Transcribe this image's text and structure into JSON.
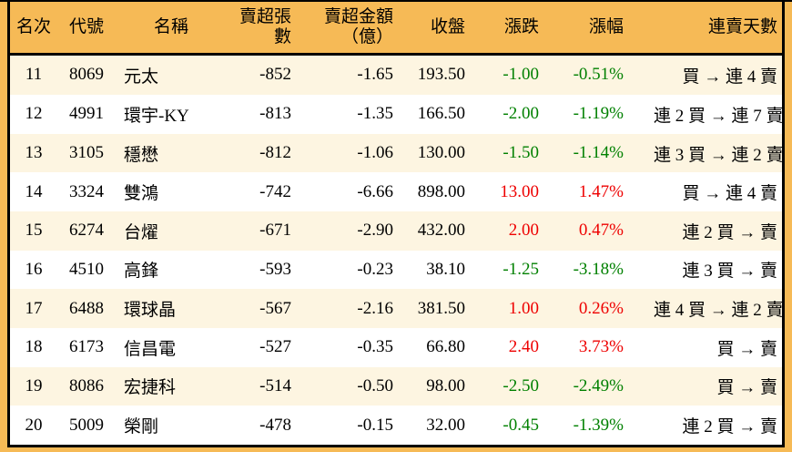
{
  "colors": {
    "page_bg": "#F6BA56",
    "header_bg": "#F6BA56",
    "row_stripe_bg": "#FDF5E1",
    "row_bg": "#FFFFFF",
    "positive_red": "#EE0000",
    "negative_green": "#008000",
    "border": "#000000"
  },
  "chart_data": {
    "type": "table",
    "columns": [
      {
        "key": "rank",
        "label": "名次"
      },
      {
        "key": "code",
        "label": "代號"
      },
      {
        "key": "name",
        "label": "名稱"
      },
      {
        "key": "sell_volume",
        "label": "賣超張數"
      },
      {
        "key": "sell_amount",
        "label": "賣超金額",
        "label_line2": "（億）"
      },
      {
        "key": "close",
        "label": "收盤"
      },
      {
        "key": "change",
        "label": "漲跌"
      },
      {
        "key": "change_pct",
        "label": "漲幅"
      },
      {
        "key": "streak",
        "label": "連賣天數"
      }
    ],
    "rows": [
      {
        "rank": "11",
        "code": "8069",
        "name": "元太",
        "sell_volume": "-852",
        "sell_amount": "-1.65",
        "close": "193.50",
        "change": "-1.00",
        "change_pct": "-0.51%",
        "streak": "買 → 連 4 賣",
        "trend": "down"
      },
      {
        "rank": "12",
        "code": "4991",
        "name": "環宇-KY",
        "sell_volume": "-813",
        "sell_amount": "-1.35",
        "close": "166.50",
        "change": "-2.00",
        "change_pct": "-1.19%",
        "streak": "連 2 買 → 連 7 賣",
        "trend": "down"
      },
      {
        "rank": "13",
        "code": "3105",
        "name": "穩懋",
        "sell_volume": "-812",
        "sell_amount": "-1.06",
        "close": "130.00",
        "change": "-1.50",
        "change_pct": "-1.14%",
        "streak": "連 3 買 → 連 2 賣",
        "trend": "down"
      },
      {
        "rank": "14",
        "code": "3324",
        "name": "雙鴻",
        "sell_volume": "-742",
        "sell_amount": "-6.66",
        "close": "898.00",
        "change": "13.00",
        "change_pct": "1.47%",
        "streak": "買 → 連 4 賣",
        "trend": "up"
      },
      {
        "rank": "15",
        "code": "6274",
        "name": "台燿",
        "sell_volume": "-671",
        "sell_amount": "-2.90",
        "close": "432.00",
        "change": "2.00",
        "change_pct": "0.47%",
        "streak": "連 2 買 → 賣",
        "trend": "up"
      },
      {
        "rank": "16",
        "code": "4510",
        "name": "高鋒",
        "sell_volume": "-593",
        "sell_amount": "-0.23",
        "close": "38.10",
        "change": "-1.25",
        "change_pct": "-3.18%",
        "streak": "連 3 買 → 賣",
        "trend": "down"
      },
      {
        "rank": "17",
        "code": "6488",
        "name": "環球晶",
        "sell_volume": "-567",
        "sell_amount": "-2.16",
        "close": "381.50",
        "change": "1.00",
        "change_pct": "0.26%",
        "streak": "連 4 買 → 連 2 賣",
        "trend": "up"
      },
      {
        "rank": "18",
        "code": "6173",
        "name": "信昌電",
        "sell_volume": "-527",
        "sell_amount": "-0.35",
        "close": "66.80",
        "change": "2.40",
        "change_pct": "3.73%",
        "streak": "買 → 賣",
        "trend": "up"
      },
      {
        "rank": "19",
        "code": "8086",
        "name": "宏捷科",
        "sell_volume": "-514",
        "sell_amount": "-0.50",
        "close": "98.00",
        "change": "-2.50",
        "change_pct": "-2.49%",
        "streak": "買 → 賣",
        "trend": "down"
      },
      {
        "rank": "20",
        "code": "5009",
        "name": "榮剛",
        "sell_volume": "-478",
        "sell_amount": "-0.15",
        "close": "32.00",
        "change": "-0.45",
        "change_pct": "-1.39%",
        "streak": "連 2 買 → 賣",
        "trend": "down"
      }
    ]
  }
}
